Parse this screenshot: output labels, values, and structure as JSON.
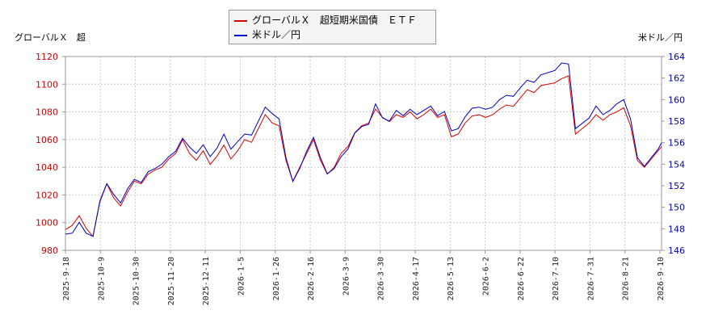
{
  "legend": {
    "etf_label": "グローバルＸ　超短期米国債　ＥＴＦ",
    "usd_label": "米ドル／円"
  },
  "axis_titles": {
    "left": "グローバルＸ　超",
    "right": "米ドル／円"
  },
  "colors": {
    "etf": "#dd0000",
    "usd": "#0000cc",
    "left_tick": "#cc0000",
    "right_tick": "#0000aa"
  },
  "chart_data": {
    "type": "line",
    "x_tick_labels": [
      "2025-9-18",
      "2025-10-9",
      "2025-10-30",
      "2025-11-20",
      "2025-12-11",
      "2026-1-5",
      "2026-1-26",
      "2026-2-16",
      "2026-3-9",
      "2026-3-30",
      "2026-4-17",
      "2026-5-13",
      "2026-6-2",
      "2026-6-22",
      "2026-7-10",
      "2026-7-31",
      "2026-8-21",
      "2026-9-10"
    ],
    "y_left": {
      "label": "グローバルＸ　超",
      "min": 980,
      "max": 1120,
      "ticks": [
        980,
        1000,
        1020,
        1040,
        1060,
        1080,
        1100,
        1120
      ]
    },
    "y_right": {
      "label": "米ドル／円",
      "min": 146,
      "max": 164,
      "ticks": [
        146,
        148,
        150,
        152,
        154,
        156,
        158,
        160,
        162,
        164
      ]
    },
    "grid": true,
    "legend_position": "top-center",
    "series": [
      {
        "name": "グローバルＸ　超短期米国債　ＥＴＦ",
        "axis": "left",
        "color": "#dd0000",
        "points": [
          [
            0,
            995
          ],
          [
            2,
            998
          ],
          [
            4,
            1005
          ],
          [
            6,
            996
          ],
          [
            8,
            990
          ],
          [
            10,
            1015
          ],
          [
            12,
            1028
          ],
          [
            14,
            1018
          ],
          [
            16,
            1012
          ],
          [
            18,
            1022
          ],
          [
            20,
            1030
          ],
          [
            22,
            1028
          ],
          [
            24,
            1035
          ],
          [
            26,
            1038
          ],
          [
            28,
            1040
          ],
          [
            30,
            1046
          ],
          [
            32,
            1050
          ],
          [
            34,
            1060
          ],
          [
            36,
            1050
          ],
          [
            38,
            1045
          ],
          [
            40,
            1052
          ],
          [
            42,
            1042
          ],
          [
            44,
            1048
          ],
          [
            46,
            1056
          ],
          [
            48,
            1046
          ],
          [
            50,
            1052
          ],
          [
            52,
            1060
          ],
          [
            54,
            1058
          ],
          [
            56,
            1068
          ],
          [
            58,
            1078
          ],
          [
            60,
            1072
          ],
          [
            62,
            1070
          ],
          [
            64,
            1045
          ],
          [
            66,
            1030
          ],
          [
            68,
            1040
          ],
          [
            70,
            1050
          ],
          [
            72,
            1060
          ],
          [
            74,
            1045
          ],
          [
            76,
            1035
          ],
          [
            78,
            1040
          ],
          [
            80,
            1050
          ],
          [
            82,
            1055
          ],
          [
            84,
            1065
          ],
          [
            86,
            1070
          ],
          [
            88,
            1072
          ],
          [
            90,
            1082
          ],
          [
            92,
            1076
          ],
          [
            94,
            1073
          ],
          [
            96,
            1078
          ],
          [
            98,
            1076
          ],
          [
            100,
            1080
          ],
          [
            102,
            1075
          ],
          [
            104,
            1078
          ],
          [
            106,
            1082
          ],
          [
            108,
            1076
          ],
          [
            110,
            1078
          ],
          [
            112,
            1062
          ],
          [
            114,
            1064
          ],
          [
            116,
            1072
          ],
          [
            118,
            1077
          ],
          [
            120,
            1078
          ],
          [
            122,
            1076
          ],
          [
            124,
            1078
          ],
          [
            126,
            1082
          ],
          [
            128,
            1085
          ],
          [
            130,
            1084
          ],
          [
            132,
            1090
          ],
          [
            134,
            1096
          ],
          [
            136,
            1094
          ],
          [
            138,
            1099
          ],
          [
            140,
            1100
          ],
          [
            142,
            1101
          ],
          [
            144,
            1104
          ],
          [
            146,
            1106
          ],
          [
            148,
            1064
          ],
          [
            150,
            1068
          ],
          [
            152,
            1072
          ],
          [
            154,
            1078
          ],
          [
            156,
            1074
          ],
          [
            158,
            1078
          ],
          [
            160,
            1080
          ],
          [
            162,
            1083
          ],
          [
            164,
            1070
          ],
          [
            166,
            1045
          ],
          [
            168,
            1040
          ],
          [
            170,
            1046
          ],
          [
            172,
            1052
          ],
          [
            173,
            1055
          ]
        ]
      },
      {
        "name": "米ドル／円",
        "axis": "right",
        "color": "#0000cc",
        "points": [
          [
            0,
            147.5
          ],
          [
            2,
            147.6
          ],
          [
            4,
            148.6
          ],
          [
            6,
            147.6
          ],
          [
            8,
            147.3
          ],
          [
            10,
            150.6
          ],
          [
            12,
            152.2
          ],
          [
            14,
            151.2
          ],
          [
            16,
            150.4
          ],
          [
            18,
            151.7
          ],
          [
            20,
            152.6
          ],
          [
            22,
            152.3
          ],
          [
            24,
            153.3
          ],
          [
            26,
            153.6
          ],
          [
            28,
            154.0
          ],
          [
            30,
            154.7
          ],
          [
            32,
            155.2
          ],
          [
            34,
            156.4
          ],
          [
            36,
            155.6
          ],
          [
            38,
            155.0
          ],
          [
            40,
            155.8
          ],
          [
            42,
            154.7
          ],
          [
            44,
            155.5
          ],
          [
            46,
            156.8
          ],
          [
            48,
            155.4
          ],
          [
            50,
            156.1
          ],
          [
            52,
            156.8
          ],
          [
            54,
            156.7
          ],
          [
            56,
            158.0
          ],
          [
            58,
            159.3
          ],
          [
            60,
            158.7
          ],
          [
            62,
            158.2
          ],
          [
            64,
            154.6
          ],
          [
            66,
            152.4
          ],
          [
            68,
            153.6
          ],
          [
            70,
            155.2
          ],
          [
            72,
            156.5
          ],
          [
            74,
            154.6
          ],
          [
            76,
            153.1
          ],
          [
            78,
            153.6
          ],
          [
            80,
            154.7
          ],
          [
            82,
            155.4
          ],
          [
            84,
            156.9
          ],
          [
            86,
            157.5
          ],
          [
            88,
            157.7
          ],
          [
            90,
            159.6
          ],
          [
            92,
            158.3
          ],
          [
            94,
            158.0
          ],
          [
            96,
            159.0
          ],
          [
            98,
            158.5
          ],
          [
            100,
            159.1
          ],
          [
            102,
            158.6
          ],
          [
            104,
            159.0
          ],
          [
            106,
            159.4
          ],
          [
            108,
            158.5
          ],
          [
            110,
            158.9
          ],
          [
            112,
            157.1
          ],
          [
            114,
            157.3
          ],
          [
            116,
            158.4
          ],
          [
            118,
            159.2
          ],
          [
            120,
            159.3
          ],
          [
            122,
            159.1
          ],
          [
            124,
            159.3
          ],
          [
            126,
            160.0
          ],
          [
            128,
            160.4
          ],
          [
            130,
            160.3
          ],
          [
            132,
            161.1
          ],
          [
            134,
            161.8
          ],
          [
            136,
            161.6
          ],
          [
            138,
            162.3
          ],
          [
            140,
            162.5
          ],
          [
            142,
            162.7
          ],
          [
            144,
            163.4
          ],
          [
            146,
            163.3
          ],
          [
            148,
            157.3
          ],
          [
            150,
            157.8
          ],
          [
            152,
            158.3
          ],
          [
            154,
            159.4
          ],
          [
            156,
            158.6
          ],
          [
            158,
            159.0
          ],
          [
            160,
            159.6
          ],
          [
            162,
            160.0
          ],
          [
            164,
            158.2
          ],
          [
            166,
            154.6
          ],
          [
            168,
            153.8
          ],
          [
            170,
            154.6
          ],
          [
            172,
            155.4
          ],
          [
            173,
            156.0
          ]
        ]
      }
    ]
  }
}
